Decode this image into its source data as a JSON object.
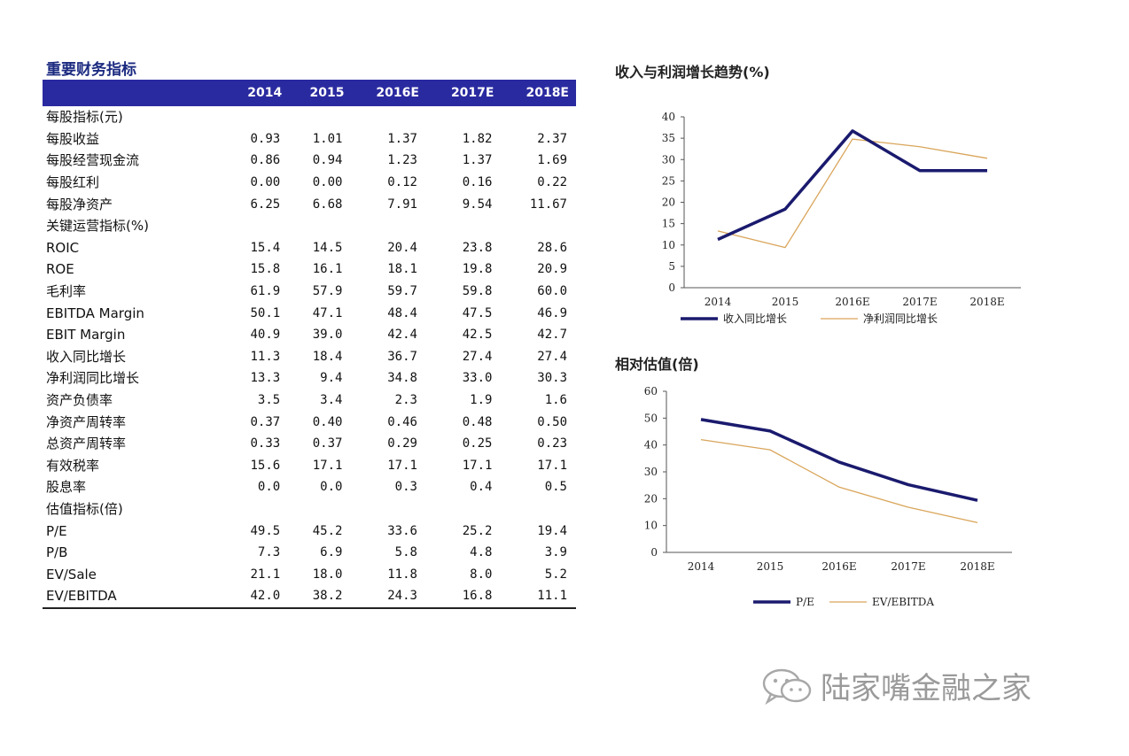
{
  "table": {
    "title": "重要财务指标",
    "headers": [
      "",
      "2014",
      "2015",
      "2016E",
      "2017E",
      "2018E"
    ],
    "rows": [
      {
        "label": "每股指标(元)",
        "values": [
          "",
          "",
          "",
          "",
          ""
        ]
      },
      {
        "label": "每股收益",
        "values": [
          "0.93",
          "1.01",
          "1.37",
          "1.82",
          "2.37"
        ]
      },
      {
        "label": "每股经营现金流",
        "values": [
          "0.86",
          "0.94",
          "1.23",
          "1.37",
          "1.69"
        ]
      },
      {
        "label": "每股红利",
        "values": [
          "0.00",
          "0.00",
          "0.12",
          "0.16",
          "0.22"
        ]
      },
      {
        "label": "每股净资产",
        "values": [
          "6.25",
          "6.68",
          "7.91",
          "9.54",
          "11.67"
        ]
      },
      {
        "label": "关键运营指标(%)",
        "values": [
          "",
          "",
          "",
          "",
          ""
        ]
      },
      {
        "label": "ROIC",
        "values": [
          "15.4",
          "14.5",
          "20.4",
          "23.8",
          "28.6"
        ]
      },
      {
        "label": "ROE",
        "values": [
          "15.8",
          "16.1",
          "18.1",
          "19.8",
          "20.9"
        ]
      },
      {
        "label": "毛利率",
        "values": [
          "61.9",
          "57.9",
          "59.7",
          "59.8",
          "60.0"
        ]
      },
      {
        "label": "EBITDA Margin",
        "values": [
          "50.1",
          "47.1",
          "48.4",
          "47.5",
          "46.9"
        ]
      },
      {
        "label": "EBIT  Margin",
        "values": [
          "40.9",
          "39.0",
          "42.4",
          "42.5",
          "42.7"
        ]
      },
      {
        "label": "收入同比增长",
        "values": [
          "11.3",
          "18.4",
          "36.7",
          "27.4",
          "27.4"
        ]
      },
      {
        "label": "净利润同比增长",
        "values": [
          "13.3",
          "9.4",
          "34.8",
          "33.0",
          "30.3"
        ]
      },
      {
        "label": "资产负债率",
        "values": [
          "3.5",
          "3.4",
          "2.3",
          "1.9",
          "1.6"
        ]
      },
      {
        "label": "净资产周转率",
        "values": [
          "0.37",
          "0.40",
          "0.46",
          "0.48",
          "0.50"
        ]
      },
      {
        "label": "总资产周转率",
        "values": [
          "0.33",
          "0.37",
          "0.29",
          "0.25",
          "0.23"
        ]
      },
      {
        "label": "有效税率",
        "values": [
          "15.6",
          "17.1",
          "17.1",
          "17.1",
          "17.1"
        ]
      },
      {
        "label": "股息率",
        "values": [
          "0.0",
          "0.0",
          "0.3",
          "0.4",
          "0.5"
        ]
      },
      {
        "label": "估值指标(倍)",
        "values": [
          "",
          "",
          "",
          "",
          ""
        ]
      },
      {
        "label": "P/E",
        "values": [
          "49.5",
          "45.2",
          "33.6",
          "25.2",
          "19.4"
        ]
      },
      {
        "label": "P/B",
        "values": [
          "7.3",
          "6.9",
          "5.8",
          "4.8",
          "3.9"
        ]
      },
      {
        "label": "EV/Sale",
        "values": [
          "21.1",
          "18.0",
          "11.8",
          "8.0",
          "5.2"
        ]
      },
      {
        "label": "EV/EBITDA",
        "values": [
          "42.0",
          "38.2",
          "24.3",
          "16.8",
          "11.1"
        ]
      }
    ]
  },
  "chart_data": [
    {
      "type": "line",
      "title": "收入与利润增长趋势(%)",
      "categories": [
        "2014",
        "2015",
        "2016E",
        "2017E",
        "2018E"
      ],
      "ylim": [
        0,
        40
      ],
      "yticks": [
        "0",
        "5",
        "10",
        "15",
        "20",
        "25",
        "30",
        "35",
        "40"
      ],
      "legend": "bottom",
      "series": [
        {
          "name": "收入同比增长",
          "values": [
            11.3,
            18.4,
            36.7,
            27.4,
            27.4
          ],
          "color": "#1a1a6e"
        },
        {
          "name": "净利润同比增长",
          "values": [
            13.3,
            9.4,
            34.8,
            33.0,
            30.3
          ],
          "color": "#d9a55a"
        }
      ]
    },
    {
      "type": "line",
      "title": "相对估值(倍)",
      "categories": [
        "2014",
        "2015",
        "2016E",
        "2017E",
        "2018E"
      ],
      "ylim": [
        0,
        60
      ],
      "yticks": [
        "0",
        "10",
        "20",
        "30",
        "40",
        "50",
        "60"
      ],
      "legend": "bottom",
      "series": [
        {
          "name": "P/E",
          "values": [
            49.5,
            45.2,
            33.6,
            25.2,
            19.4
          ],
          "color": "#1a1a6e"
        },
        {
          "name": "EV/EBITDA",
          "values": [
            42.0,
            38.2,
            24.3,
            16.8,
            11.1
          ],
          "color": "#d9a55a"
        }
      ]
    }
  ],
  "watermark": {
    "text": "陆家嘴金融之家",
    "icon": "wechat-icon",
    "color": "#9a9a9a"
  }
}
